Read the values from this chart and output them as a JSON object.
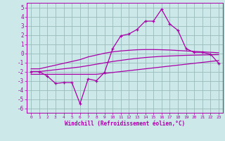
{
  "xlabel": "Windchill (Refroidissement éolien,°C)",
  "x_values": [
    0,
    1,
    2,
    3,
    4,
    5,
    6,
    7,
    8,
    9,
    10,
    11,
    12,
    13,
    14,
    15,
    16,
    17,
    18,
    19,
    20,
    21,
    22,
    23
  ],
  "main_line": [
    -2.0,
    -2.0,
    -2.5,
    -3.3,
    -3.2,
    -3.2,
    -5.5,
    -2.8,
    -3.0,
    -2.1,
    0.5,
    1.9,
    2.1,
    2.6,
    3.5,
    3.5,
    4.8,
    3.2,
    2.5,
    0.5,
    0.1,
    0.1,
    -0.1,
    -1.1
  ],
  "upper_line": [
    -1.7,
    -1.7,
    -1.5,
    -1.3,
    -1.1,
    -0.9,
    -0.7,
    -0.4,
    -0.2,
    0.0,
    0.15,
    0.25,
    0.32,
    0.38,
    0.4,
    0.4,
    0.38,
    0.35,
    0.3,
    0.25,
    0.2,
    0.15,
    0.1,
    0.05
  ],
  "mid_line": [
    -2.0,
    -2.0,
    -1.9,
    -1.8,
    -1.7,
    -1.6,
    -1.5,
    -1.35,
    -1.2,
    -1.05,
    -0.9,
    -0.78,
    -0.66,
    -0.56,
    -0.47,
    -0.4,
    -0.34,
    -0.3,
    -0.26,
    -0.23,
    -0.21,
    -0.19,
    -0.17,
    -0.15
  ],
  "lower_line": [
    -2.3,
    -2.3,
    -2.3,
    -2.3,
    -2.3,
    -2.3,
    -2.3,
    -2.3,
    -2.3,
    -2.2,
    -2.1,
    -2.0,
    -1.9,
    -1.8,
    -1.7,
    -1.6,
    -1.5,
    -1.4,
    -1.3,
    -1.2,
    -1.1,
    -1.0,
    -0.9,
    -0.8
  ],
  "line_color": "#aa00aa",
  "bg_color": "#cce8e8",
  "grid_color": "#99bbbb",
  "ylim": [
    -6.5,
    5.5
  ],
  "yticks": [
    -6,
    -5,
    -4,
    -3,
    -2,
    -1,
    0,
    1,
    2,
    3,
    4,
    5
  ],
  "xlim": [
    -0.5,
    23.5
  ]
}
